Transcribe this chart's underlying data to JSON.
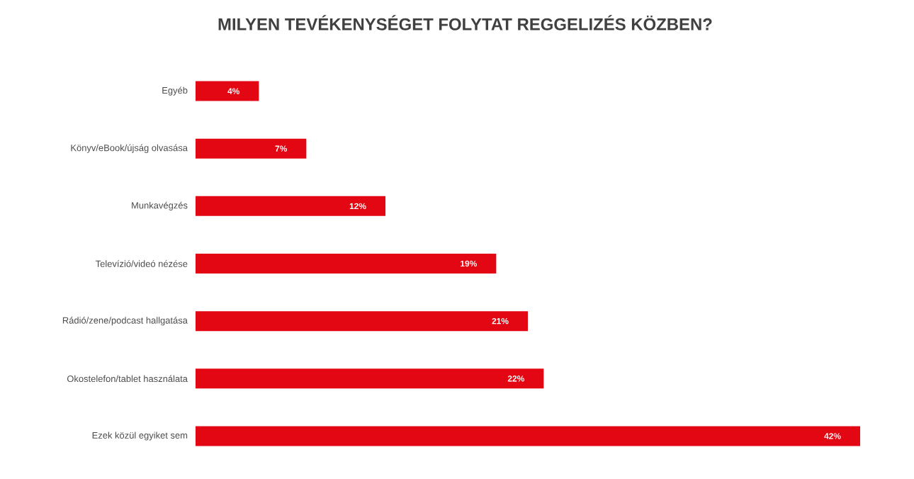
{
  "chart_data": {
    "type": "bar",
    "orientation": "horizontal",
    "title": "MILYEN TEVÉKENYSÉGET FOLYTAT REGGELIZÉS KÖZBEN?",
    "categories": [
      "Egyéb",
      "Könyv/eBook/újság olvasása",
      "Munkavégzés",
      "Televízió/videó nézése",
      "Rádió/zene/podcast hallgatása",
      "Okostelefon/tablet használata",
      "Ezek közül egyiket sem"
    ],
    "values": [
      4,
      7,
      12,
      19,
      21,
      22,
      42
    ],
    "value_labels": [
      "4%",
      "7%",
      "12%",
      "19%",
      "21%",
      "22%",
      "42%"
    ],
    "color": "#e30613"
  }
}
